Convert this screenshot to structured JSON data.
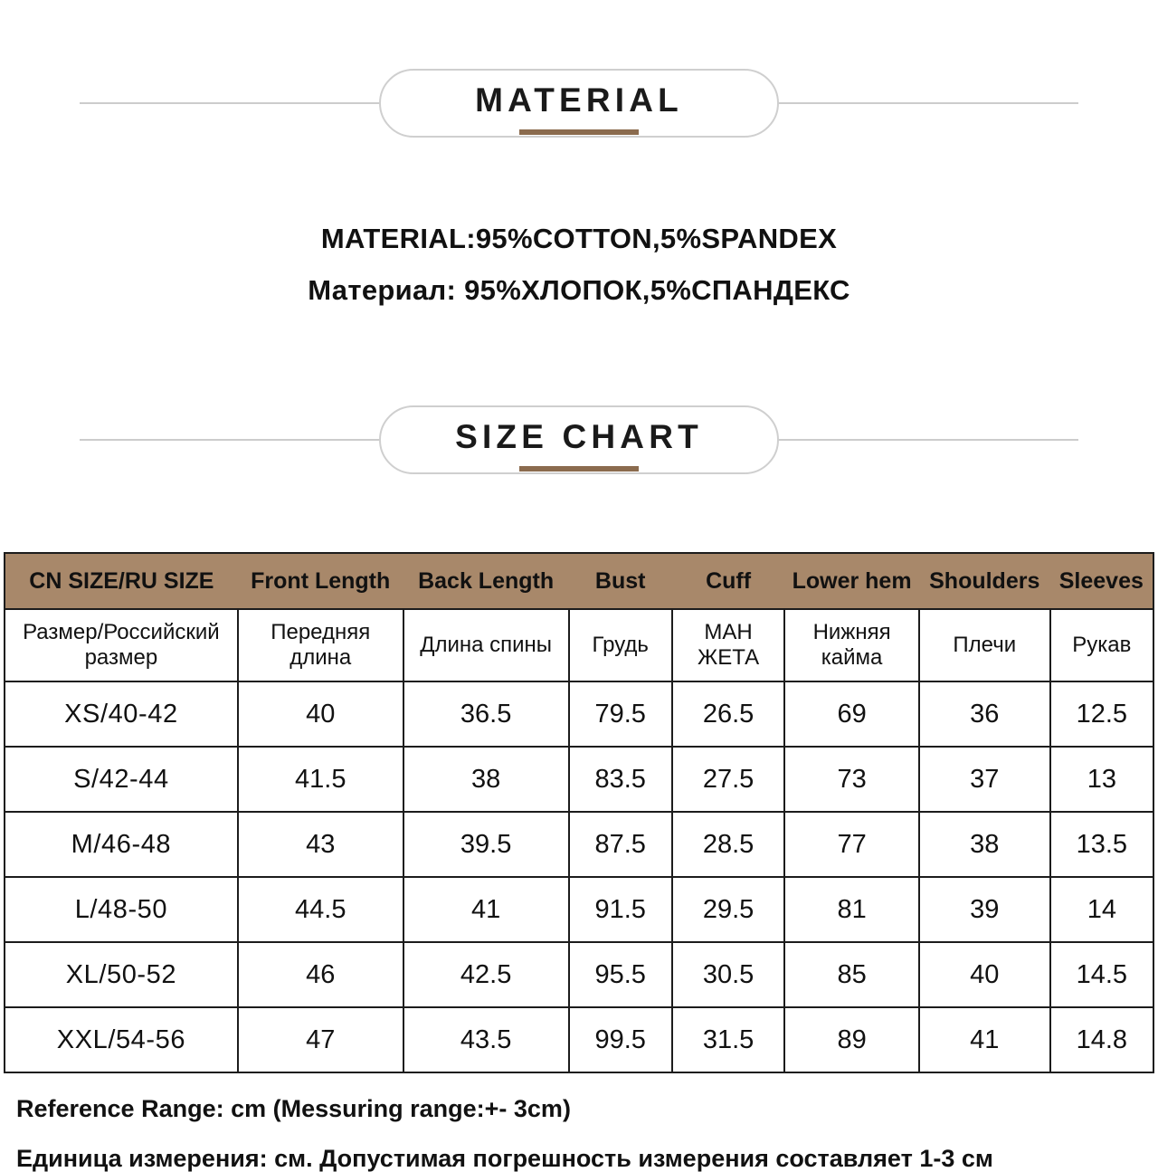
{
  "material_section": {
    "title": "MATERIAL",
    "lines": [
      "MATERIAL:95%COTTON,5%SPANDEX",
      "Материал: 95%ХЛОПОК,5%СПАНДЕКС"
    ]
  },
  "size_section": {
    "title": "SIZE  CHART"
  },
  "chart_data": {
    "type": "table",
    "title": "SIZE CHART",
    "columns_en": [
      "CN SIZE/RU SIZE",
      "Front Length",
      "Back Length",
      "Bust",
      "Cuff",
      "Lower hem",
      "Shoulders",
      "Sleeves"
    ],
    "columns_ru": [
      "Размер/Российский размер",
      "Передняя длина",
      "Длина спины",
      "Грудь",
      "МАН ЖЕТА",
      "Нижняя кайма",
      "Плечи",
      "Рукав"
    ],
    "rows": [
      [
        "XS/40-42",
        "40",
        "36.5",
        "79.5",
        "26.5",
        "69",
        "36",
        "12.5"
      ],
      [
        "S/42-44",
        "41.5",
        "38",
        "83.5",
        "27.5",
        "73",
        "37",
        "13"
      ],
      [
        "M/46-48",
        "43",
        "39.5",
        "87.5",
        "28.5",
        "77",
        "38",
        "13.5"
      ],
      [
        "L/48-50",
        "44.5",
        "41",
        "91.5",
        "29.5",
        "81",
        "39",
        "14"
      ],
      [
        "XL/50-52",
        "46",
        "42.5",
        "95.5",
        "30.5",
        "85",
        "40",
        "14.5"
      ],
      [
        "XXL/54-56",
        "47",
        "43.5",
        "99.5",
        "31.5",
        "89",
        "41",
        "14.8"
      ]
    ],
    "units_note": "cm"
  },
  "notes": [
    "Reference Range: cm (Messuring range:+- 3cm)",
    "Единица измерения: см. Допустимая погрешность измерения составляет 1-3 см"
  ],
  "colors": {
    "header_bg": "#a8886a",
    "accent_underline": "#8b6b4e",
    "table_border": "#1c1c1c",
    "pill_border": "#cfcfcf",
    "side_line": "#cccccc"
  }
}
